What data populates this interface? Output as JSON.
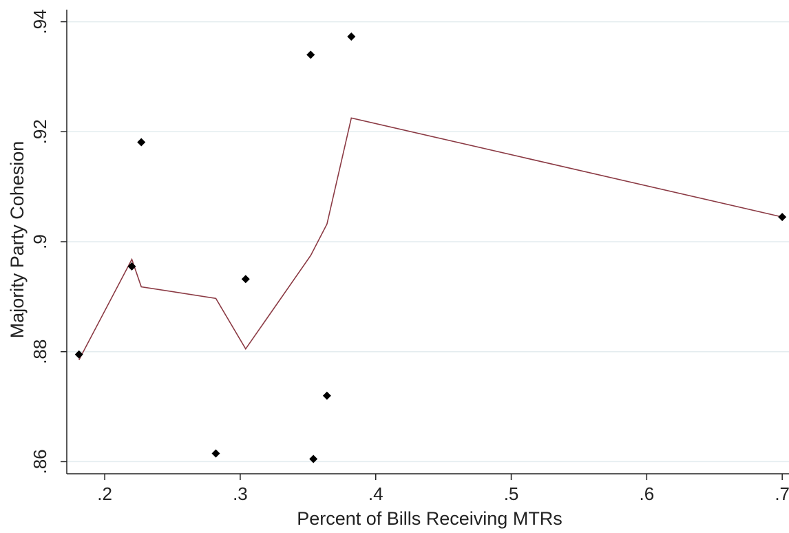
{
  "chart_data": {
    "type": "scatter",
    "title": "",
    "xlabel": "Percent of Bills Receiving MTRs",
    "ylabel": "Majority Party Cohesion",
    "xlim": [
      0.172,
      0.705
    ],
    "ylim": [
      0.8578,
      0.9422
    ],
    "xticks": [
      0.2,
      0.3,
      0.4,
      0.5,
      0.6,
      0.7
    ],
    "xtick_labels": [
      ".2",
      ".3",
      ".4",
      ".5",
      ".6",
      ".7"
    ],
    "yticks": [
      0.86,
      0.88,
      0.9,
      0.92,
      0.94
    ],
    "ytick_labels": [
      ".86",
      ".88",
      ".9",
      ".92",
      ".94"
    ],
    "grid": "horizontal",
    "legend": "none",
    "series": [
      {
        "kind": "scatter",
        "color": "#000000",
        "points": [
          {
            "x": 0.181,
            "y": 0.8795
          },
          {
            "x": 0.22,
            "y": 0.8955
          },
          {
            "x": 0.227,
            "y": 0.9181
          },
          {
            "x": 0.282,
            "y": 0.8615
          },
          {
            "x": 0.304,
            "y": 0.8932
          },
          {
            "x": 0.352,
            "y": 0.934
          },
          {
            "x": 0.354,
            "y": 0.8605
          },
          {
            "x": 0.364,
            "y": 0.872
          },
          {
            "x": 0.382,
            "y": 0.9373
          },
          {
            "x": 0.7,
            "y": 0.9045
          }
        ]
      },
      {
        "kind": "line",
        "color": "#8b3a44",
        "points": [
          {
            "x": 0.181,
            "y": 0.8785
          },
          {
            "x": 0.22,
            "y": 0.8968
          },
          {
            "x": 0.227,
            "y": 0.8918
          },
          {
            "x": 0.282,
            "y": 0.8897
          },
          {
            "x": 0.304,
            "y": 0.8805
          },
          {
            "x": 0.352,
            "y": 0.8975
          },
          {
            "x": 0.364,
            "y": 0.9032
          },
          {
            "x": 0.382,
            "y": 0.9225
          },
          {
            "x": 0.7,
            "y": 0.9045
          }
        ]
      }
    ],
    "colors": {
      "axis": "#222222",
      "grid": "#e3ecef",
      "background": "#ffffff"
    }
  }
}
